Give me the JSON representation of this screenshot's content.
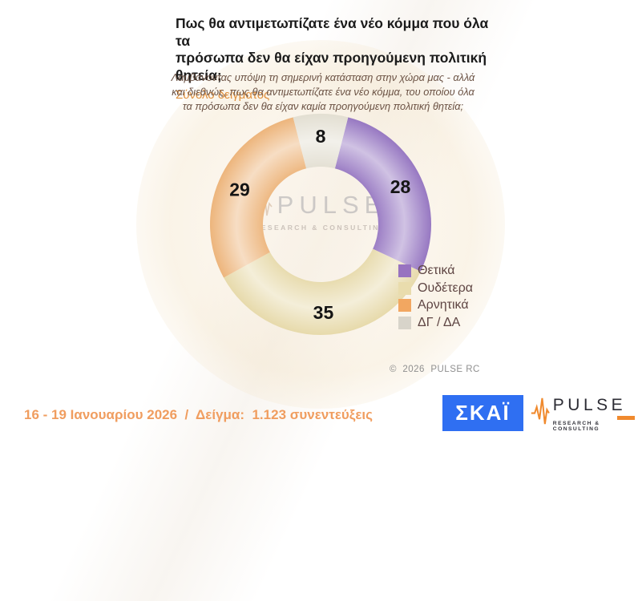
{
  "header": {
    "title_lines": [
      "Πως θα αντιμετωπίζατε ένα νέο κόμμα που όλα τα",
      "πρόσωπα δεν θα είχαν προηγούμενη πολιτική θητεία;"
    ],
    "subtitle": "Σύνολο δείγματος"
  },
  "question_note": {
    "lines": [
      "Λαμβάνοντας υπόψη τη σημερινή κατάσταση στην χώρα μας - αλλά",
      "και διεθνώς, πως θα αντιμετωπίζατε ένα νέο κόμμα, του οποίου όλα",
      "τα πρόσωπα δεν θα είχαν καμία προηγούμενη πολιτική θητεία;"
    ]
  },
  "chart_data": {
    "type": "pie",
    "subtype": "donut",
    "title": "Πως θα αντιμετωπίζατε ένα νέο κόμμα που όλα τα πρόσωπα δεν θα είχαν προηγούμενη πολιτική θητεία; (Σύνολο δείγματος)",
    "units": "percent",
    "start_angle_deg": 14.4,
    "value_labels": "on-ring",
    "legend_position": "right-bottom",
    "segments": [
      {
        "label": "Θετικά",
        "value": 28,
        "ring_color": "#9778c2",
        "swatch_color": "#9873c0"
      },
      {
        "label": "Ουδέτερα",
        "value": 35,
        "ring_color": "#e7daab",
        "swatch_color": "#e9dcad"
      },
      {
        "label": "Αρνητικά",
        "value": 29,
        "ring_color": "#edb57c",
        "swatch_color": "#f2a761"
      },
      {
        "label": "ΔΓ / ΔΑ",
        "value": 8,
        "ring_color": "#e3dfd2",
        "swatch_color": "#d8d4ca"
      }
    ]
  },
  "watermark": {
    "name": "PULSE",
    "tagline": "RESEARCH & CONSULTING"
  },
  "copyright": "©  2026  PULSE RC",
  "footer": {
    "fieldwork": "16 - 19 Ιανουαρίου 2026  /  Δείγμα:  1.123 συνεντεύξεις"
  },
  "logos": {
    "skai": {
      "label": "ΣΚΑΪ",
      "bg_color": "#2f6ff2"
    },
    "pulse": {
      "name": "PULSE",
      "tagline": "RESEARCH & CONSULTING",
      "accent_color": "#f08a2e"
    }
  }
}
